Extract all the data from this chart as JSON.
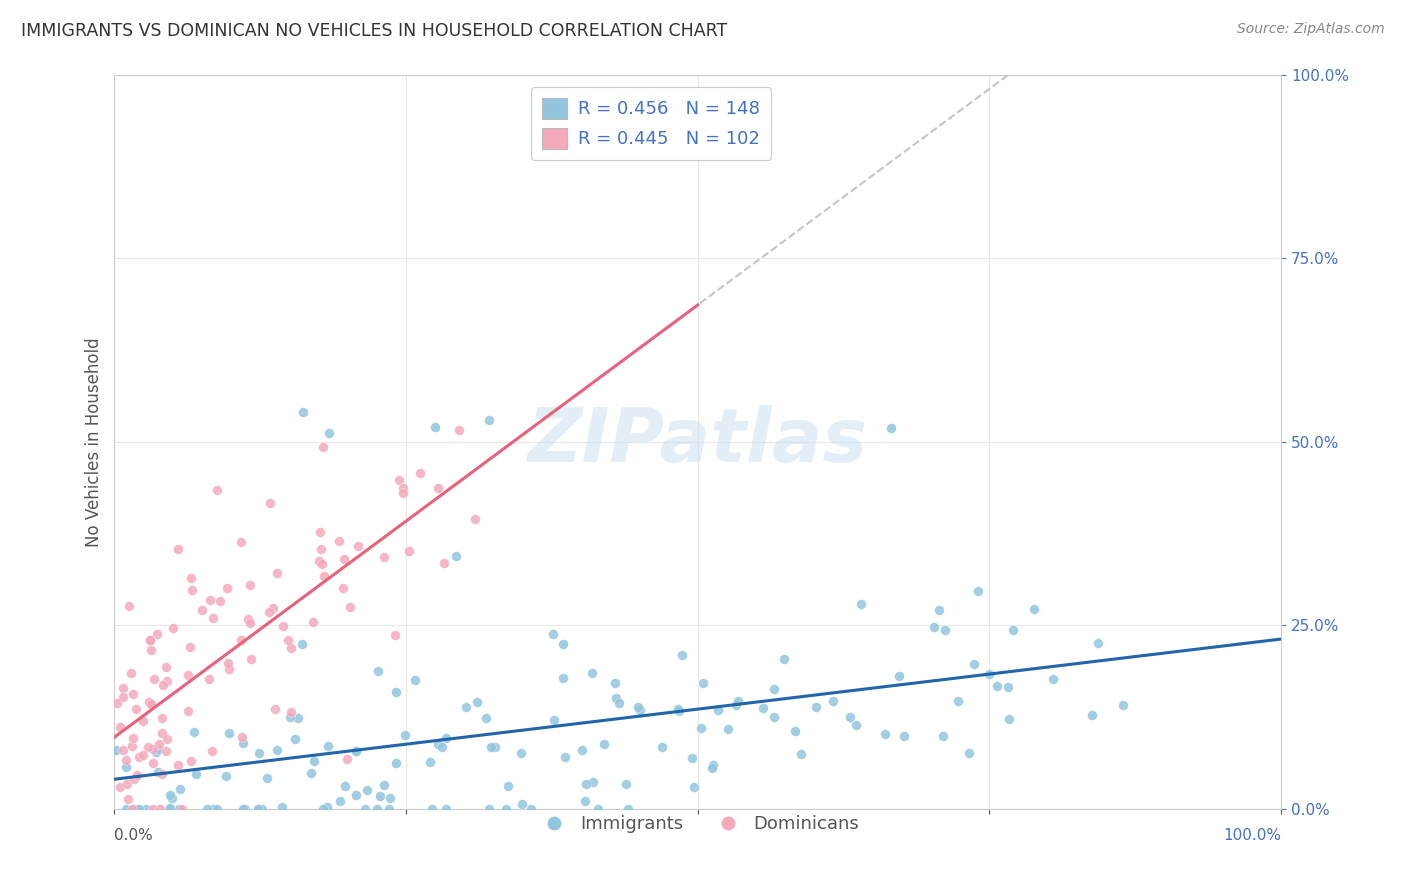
{
  "title": "IMMIGRANTS VS DOMINICAN NO VEHICLES IN HOUSEHOLD CORRELATION CHART",
  "source": "Source: ZipAtlas.com",
  "ylabel": "No Vehicles in Household",
  "watermark": "ZIPatlas",
  "legend": {
    "blue_label_r": "R = 0.456",
    "blue_label_n": "N = 148",
    "pink_label_r": "R = 0.445",
    "pink_label_n": "N = 102",
    "immigrants_label": "Immigrants",
    "dominicans_label": "Dominicans"
  },
  "blue_color": "#92c5de",
  "pink_color": "#f4a9bb",
  "blue_line_color": "#2166ac",
  "pink_line_color": "#e8637a",
  "dash_color": "#bbbbbb",
  "blue_R": 0.456,
  "blue_N": 148,
  "pink_R": 0.445,
  "pink_N": 102,
  "ytick_labels": [
    "0.0%",
    "25.0%",
    "50.0%",
    "75.0%",
    "100.0%"
  ],
  "ytick_vals": [
    0.0,
    0.25,
    0.5,
    0.75,
    1.0
  ],
  "xtick_left": "0.0%",
  "xtick_right": "100.0%",
  "background_color": "#ffffff",
  "grid_color": "#e8e8e8",
  "axis_color": "#cccccc",
  "label_color": "#4472c4",
  "text_color": "#555555",
  "title_color": "#333333",
  "source_color": "#888888"
}
